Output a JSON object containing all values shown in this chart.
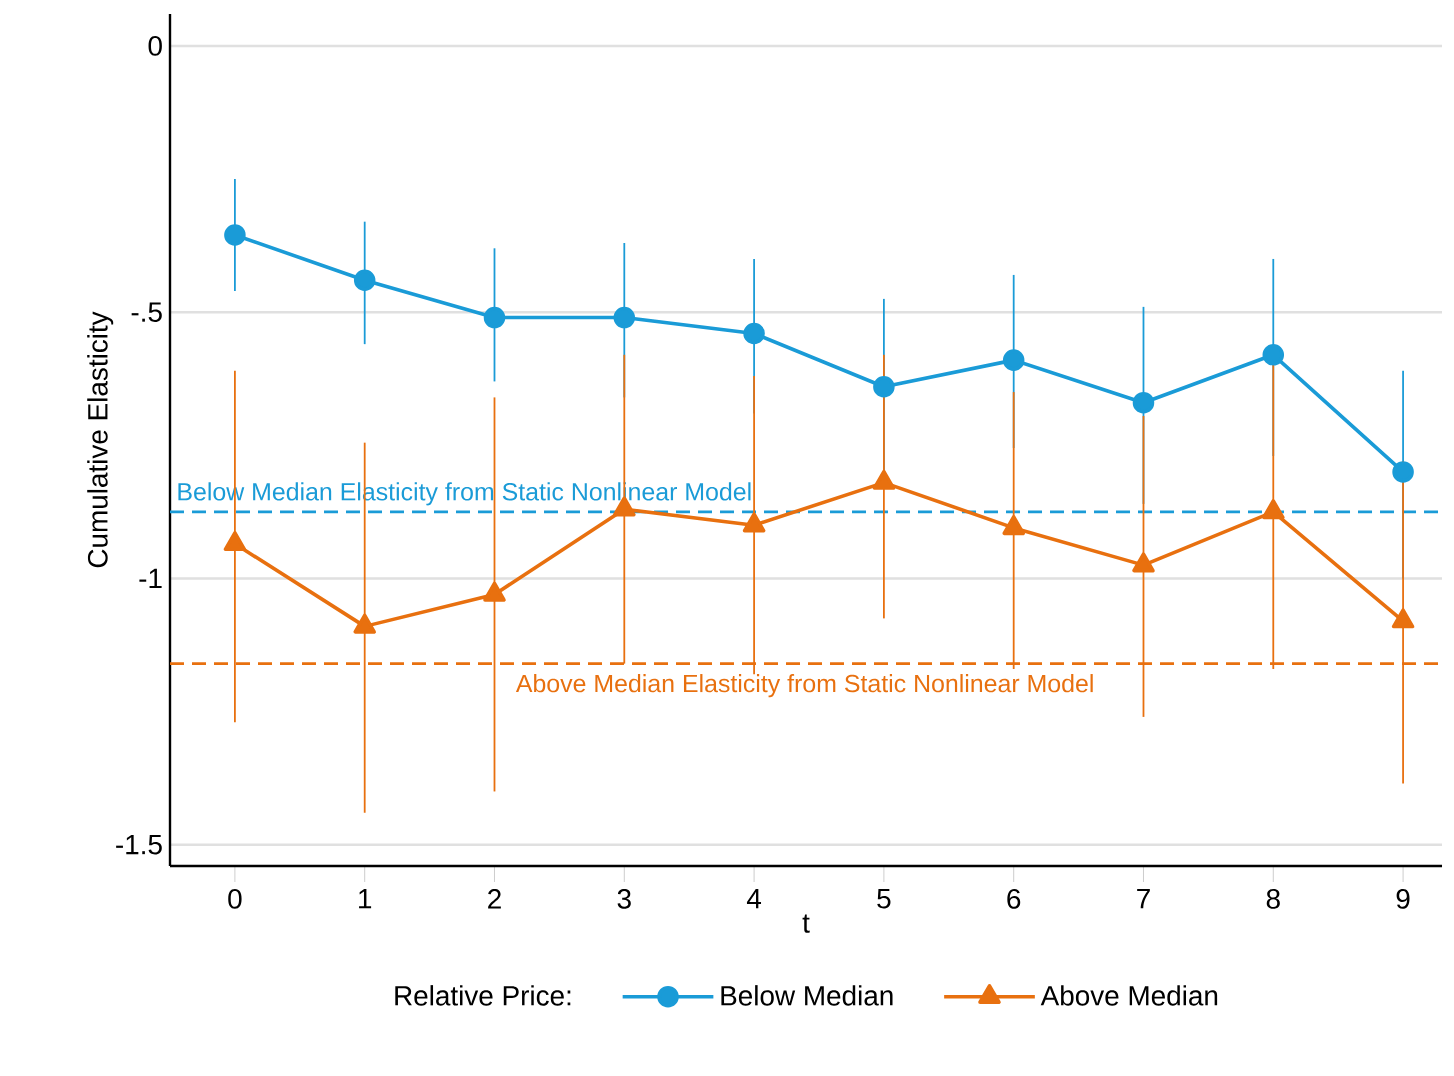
{
  "chart_data": {
    "type": "line",
    "xlabel": "t",
    "ylabel": "Cumulative Elasticity",
    "legend_title": "Relative Price:",
    "x": [
      0,
      1,
      2,
      3,
      4,
      5,
      6,
      7,
      8,
      9
    ],
    "series": [
      {
        "name": "Below Median",
        "color": "#1a9bd7",
        "marker": "circle",
        "values": [
          -0.355,
          -0.44,
          -0.51,
          -0.51,
          -0.54,
          -0.64,
          -0.59,
          -0.67,
          -0.58,
          -0.8
        ],
        "errors": [
          [
            -0.46,
            -0.25
          ],
          [
            -0.56,
            -0.33
          ],
          [
            -0.63,
            -0.38
          ],
          [
            -0.66,
            -0.37
          ],
          [
            -0.69,
            -0.4
          ],
          [
            -0.8,
            -0.475
          ],
          [
            -0.755,
            -0.43
          ],
          [
            -0.86,
            -0.49
          ],
          [
            -0.77,
            -0.4
          ],
          [
            -1.0,
            -0.61
          ]
        ]
      },
      {
        "name": "Above Median",
        "color": "#e8700f",
        "marker": "triangle",
        "values": [
          -0.935,
          -1.09,
          -1.03,
          -0.87,
          -0.9,
          -0.82,
          -0.905,
          -0.975,
          -0.875,
          -1.08
        ],
        "errors": [
          [
            -1.27,
            -0.61
          ],
          [
            -1.44,
            -0.745
          ],
          [
            -1.4,
            -0.66
          ],
          [
            -1.16,
            -0.58
          ],
          [
            -1.18,
            -0.62
          ],
          [
            -1.075,
            -0.58
          ],
          [
            -1.17,
            -0.65
          ],
          [
            -1.26,
            -0.695
          ],
          [
            -1.17,
            -0.585
          ],
          [
            -1.385,
            -0.78
          ]
        ]
      }
    ],
    "ref_lines": [
      {
        "axis": "y",
        "value": -0.875,
        "label": "Below Median Elasticity from Static Nonlinear Model",
        "color": "#1a9bd7",
        "line_style": "dashed"
      },
      {
        "axis": "y",
        "value": -1.16,
        "label": "Above Median Elasticity from Static Nonlinear Model",
        "color": "#e8700f",
        "line_style": "dashed"
      }
    ],
    "xlim": [
      -0.5,
      9.3
    ],
    "xticks": [
      0,
      1,
      2,
      3,
      4,
      5,
      6,
      7,
      8,
      9
    ],
    "ylim": [
      -1.54,
      0.06
    ],
    "yticks": [
      0,
      {
        "value": -0.5,
        "label": "-.5"
      },
      -1,
      -1.5
    ],
    "grid": "y",
    "legend": "bottom",
    "line_style": "solid"
  }
}
